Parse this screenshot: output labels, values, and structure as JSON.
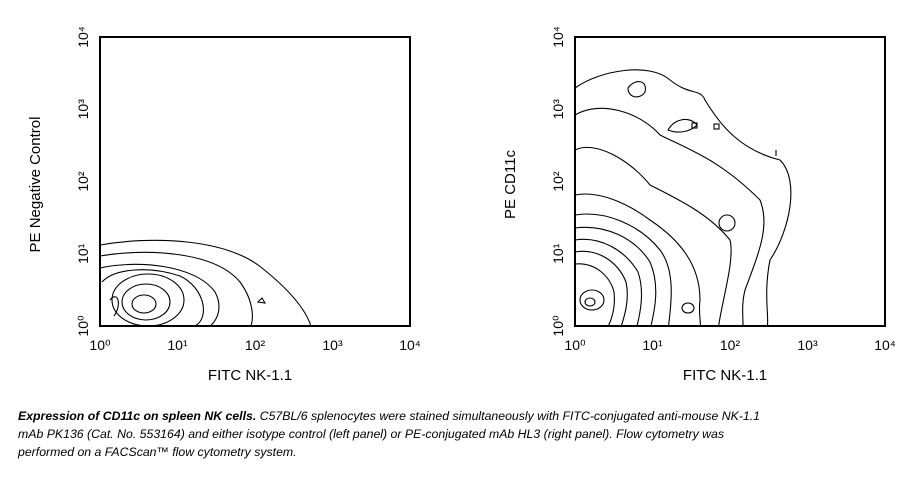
{
  "panels": [
    {
      "y_label": "PE Negative Control",
      "x_label": "FITC NK-1.1",
      "x_ticks": [
        "10⁰",
        "10¹",
        "10²",
        "10³",
        "10⁴"
      ],
      "y_ticks": [
        "10⁰",
        "10¹",
        "10²",
        "10³",
        "10⁴"
      ]
    },
    {
      "y_label": "PE CD11c",
      "x_label": "FITC NK-1.1",
      "x_ticks": [
        "10⁰",
        "10¹",
        "10²",
        "10³",
        "10⁴"
      ],
      "y_ticks": [
        "10⁰",
        "10¹",
        "10²",
        "10³",
        "10⁴"
      ]
    }
  ],
  "caption": {
    "bold": "Expression of CD11c on spleen NK cells.",
    "text": "C57BL/6 splenocytes were stained simultaneously with FITC-conjugated anti-mouse NK-1.1 mAb PK136 (Cat. No. 553164) and either isotype control (left panel) or PE-conjugated mAb HL3 (right panel). Flow cytometry was performed on a FACScan™ flow cytometry system."
  }
}
